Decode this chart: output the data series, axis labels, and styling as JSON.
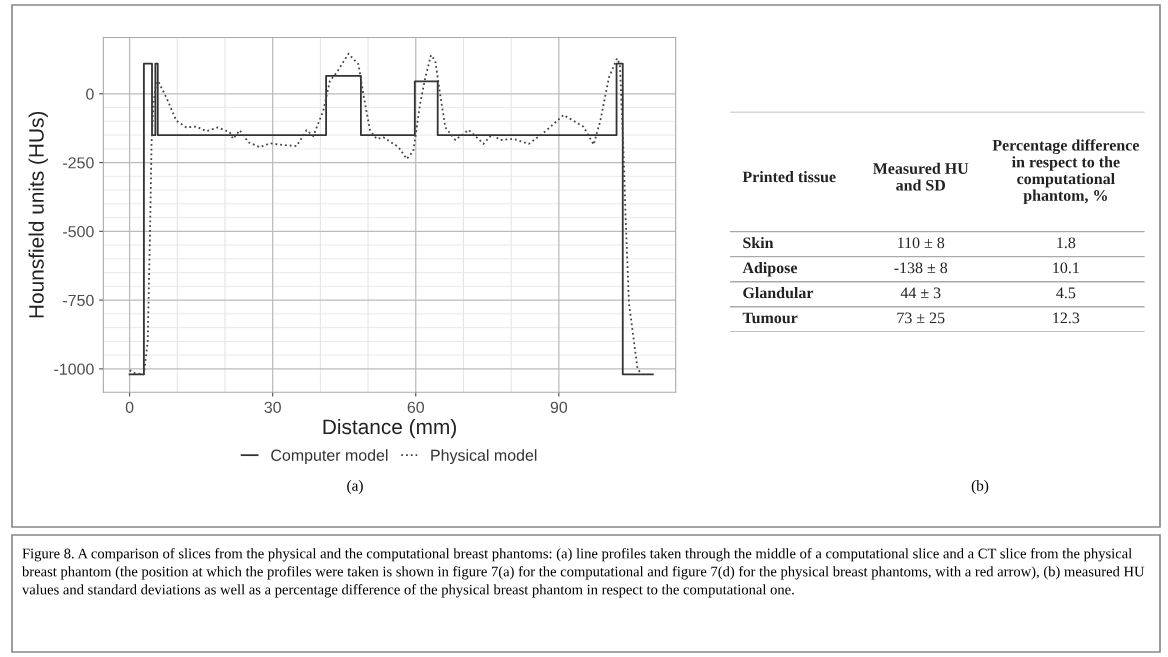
{
  "chart_data": [
    {
      "type": "line",
      "xlabel": "Distance (mm)",
      "ylabel": "Hounsfield units (HUs)",
      "xlim": [
        -5.5,
        114.5
      ],
      "ylim": [
        -1085,
        205
      ],
      "xticks": [
        0,
        30,
        60,
        90
      ],
      "yticks": [
        -1000,
        -750,
        -500,
        -250,
        0
      ],
      "grid": true,
      "legend": "bottom",
      "series": [
        {
          "name": "Computer model",
          "type": "step",
          "color": "#333333",
          "line_style": "solid",
          "x": [
            0,
            3.0,
            4.7,
            5.4,
            5.9,
            41.2,
            48.5,
            59.8,
            64.6,
            102.1,
            103.4,
            109.7
          ],
          "values": [
            -1020,
            110,
            -150,
            110,
            -150,
            65,
            -150,
            45,
            -150,
            110,
            -1020,
            -1020
          ]
        },
        {
          "name": "Physical model",
          "type": "line",
          "color": "#444444",
          "line_style": "dotted",
          "x": [
            0,
            1,
            3,
            3.8,
            4.3,
            4.6,
            5.0,
            5.5,
            5.95,
            7.7,
            9.8,
            11.9,
            14.0,
            16.1,
            18.5,
            21.0,
            21.7,
            23.1,
            24.9,
            27.3,
            29.4,
            32.2,
            35.0,
            37.1,
            38.5,
            40.6,
            42.0,
            43.4,
            45.9,
            48.0,
            49.0,
            50.4,
            51.8,
            53.2,
            56.4,
            58.1,
            59.5,
            60.9,
            62.0,
            63.2,
            64.1,
            65.1,
            66.2,
            68.3,
            71.1,
            74.2,
            76.0,
            77.7,
            80.5,
            83.7,
            86.8,
            91.0,
            95.2,
            97.3,
            98.7,
            100.5,
            102.2,
            102.8,
            103.5,
            104.0,
            104.7,
            106.5,
            107.4
          ],
          "values": [
            -1005,
            -1015,
            -1020,
            -900,
            -484,
            -182,
            -37,
            30,
            47,
            -13,
            -98,
            -122,
            -119,
            -136,
            -122,
            -140,
            -164,
            -132,
            -176,
            -194,
            -180,
            -186,
            -190,
            -132,
            -154,
            -62,
            47,
            77,
            146,
            107,
            -1,
            -132,
            -164,
            -158,
            -194,
            -237,
            -208,
            -37,
            59,
            141,
            120,
            -1,
            -122,
            -168,
            -131,
            -182,
            -147,
            -168,
            -164,
            -182,
            -142,
            -77,
            -120,
            -185,
            -98,
            59,
            129,
            107,
            -182,
            -448,
            -761,
            -1000,
            -1020
          ]
        }
      ],
      "annotations": [
        "(a)",
        "Figure 8. A comparison of slices from the physical and the computational breast phantoms: (a) line profiles taken through the middle of a computational slice and a CT slice from the physical breast phantom (the position at which the profiles were taken is shown in figure 7(a) for the computational and figure 7(d) for the physical breast phantoms, with a red arrow), (b) measured HU values and standard deviations as well as a percentage difference of the physical breast phantom in respect to the computational one."
      ]
    },
    {
      "type": "other",
      "xlabel": "Printed tissue",
      "categories": [
        "Skin",
        "Adipose",
        "Glandular",
        "Tumour"
      ],
      "series": [
        {
          "name": "Measured HU and SD",
          "values": [
            110,
            -138,
            44,
            73
          ],
          "value_labels": [
            "110 ± 8",
            "-138 ± 8",
            "44 ± 3",
            "73 ± 25"
          ]
        },
        {
          "name": "Percentage difference in respect to the computational phantom, %",
          "values": [
            1.8,
            10.1,
            4.5,
            12.3
          ],
          "value_labels": [
            "1.8",
            "10.1",
            "4.5",
            "12.3"
          ]
        }
      ],
      "annotations": [
        "(b)"
      ]
    }
  ]
}
